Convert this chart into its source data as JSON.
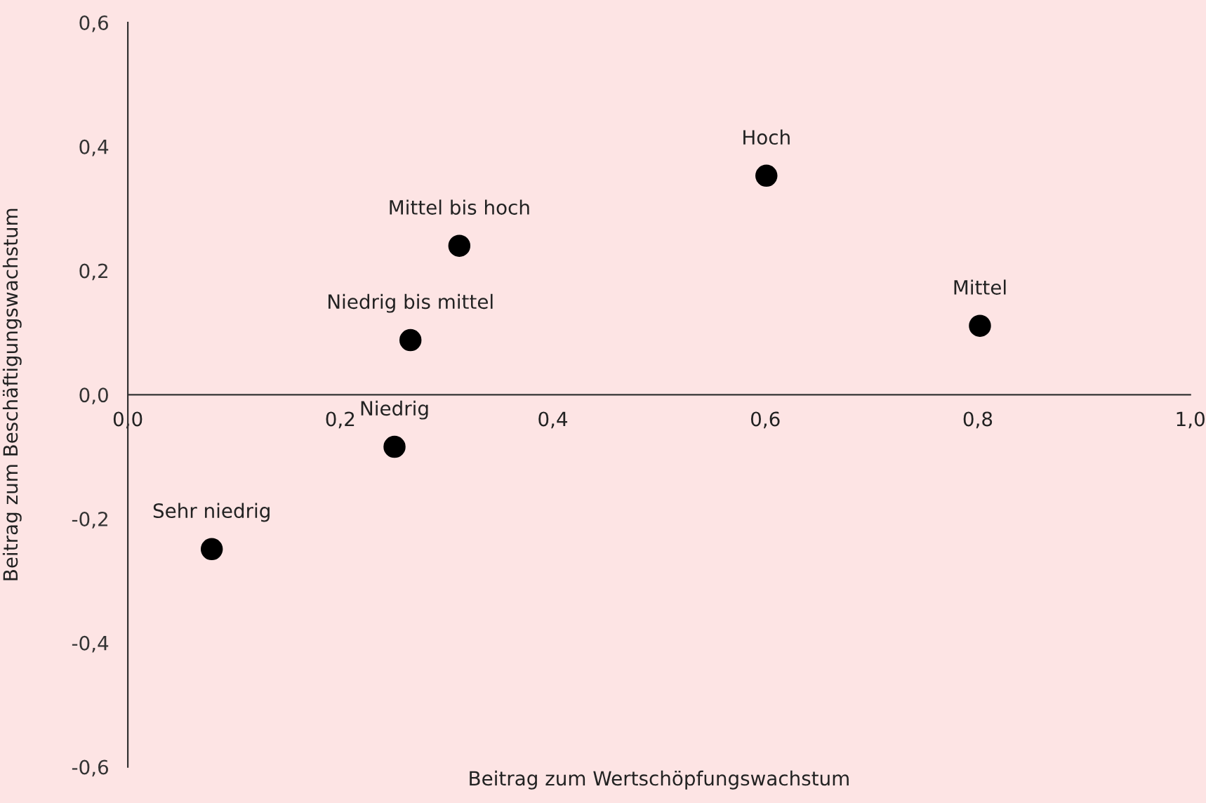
{
  "chart_data": {
    "type": "scatter",
    "xlabel": "Beitrag zum Wertschöpfungswachstum",
    "ylabel": "Beitrag zum Beschäftigungswachstum",
    "x": [
      0.601,
      0.802,
      0.312,
      0.266,
      0.251,
      0.079
    ],
    "series": [
      {
        "color": "#000000",
        "values": [
          0.353,
          0.111,
          0.24,
          0.088,
          -0.084,
          -0.249
        ]
      }
    ],
    "annotations": [
      {
        "text": "Hoch",
        "x": 0.601,
        "y": 0.353
      },
      {
        "text": "Mittel",
        "x": 0.802,
        "y": 0.111
      },
      {
        "text": "Mittel bis hoch",
        "x": 0.312,
        "y": 0.24
      },
      {
        "text": "Niedrig bis mittel",
        "x": 0.266,
        "y": 0.088
      },
      {
        "text": "Niedrig",
        "x": 0.251,
        "y": -0.084
      },
      {
        "text": "Sehr niedrig",
        "x": 0.079,
        "y": -0.249
      }
    ],
    "xlim": [
      0,
      1.0
    ],
    "ylim": [
      -0.6,
      0.6
    ],
    "xticks": [
      {
        "value": 0,
        "label": "0,0"
      },
      {
        "value": 0.2,
        "label": "0,2"
      },
      {
        "value": 0.4,
        "label": "0,4"
      },
      {
        "value": 0.6,
        "label": "0,6"
      },
      {
        "value": 0.8,
        "label": "0,8"
      },
      {
        "value": 1.0,
        "label": "1,0"
      }
    ],
    "yticks": [
      {
        "value": -0.6,
        "label": "-0,6"
      },
      {
        "value": -0.4,
        "label": "-0,4"
      },
      {
        "value": -0.2,
        "label": "-0,2"
      },
      {
        "value": 0,
        "label": "0,0"
      },
      {
        "value": 0.2,
        "label": "0,2"
      },
      {
        "value": 0.4,
        "label": "0,4"
      },
      {
        "value": 0.6,
        "label": "0,6"
      }
    ],
    "grid": false,
    "legend": false,
    "marker": "circle"
  }
}
